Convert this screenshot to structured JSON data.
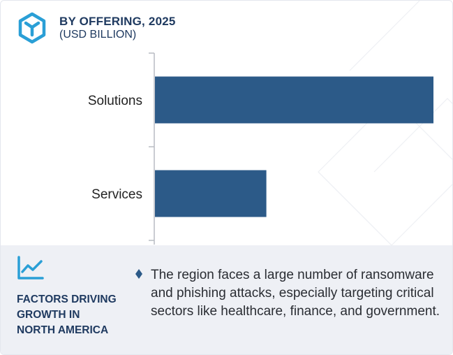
{
  "header": {
    "title": "BY OFFERING, 2025",
    "subtitle": "(USD BILLION)",
    "logo_icon": "hexagon-cube-logo-icon"
  },
  "colors": {
    "bar": "#2c5a88",
    "title": "#1f3a60",
    "axis": "#b9bcc3",
    "footer_bg": "#eef0f5",
    "accent": "#2a9fd6"
  },
  "chart_data": {
    "type": "bar",
    "orientation": "horizontal",
    "categories": [
      "Solutions",
      "Services"
    ],
    "values": [
      100,
      40
    ],
    "title": "BY OFFERING, 2025",
    "subtitle": "(USD BILLION)",
    "xlabel": "",
    "ylabel": "",
    "xlim": [
      0,
      100
    ],
    "grid": false,
    "value_labels": false
  },
  "footer": {
    "icon": "trend-line-icon",
    "title": "FACTORS DRIVING\nGROWTH IN\nNORTH AMERICA",
    "bullet_icon": "diamond-bullet-icon",
    "bullet_text": "The region faces a large number of ransomware and phishing attacks, especially targeting critical sectors like healthcare, finance, and government."
  }
}
